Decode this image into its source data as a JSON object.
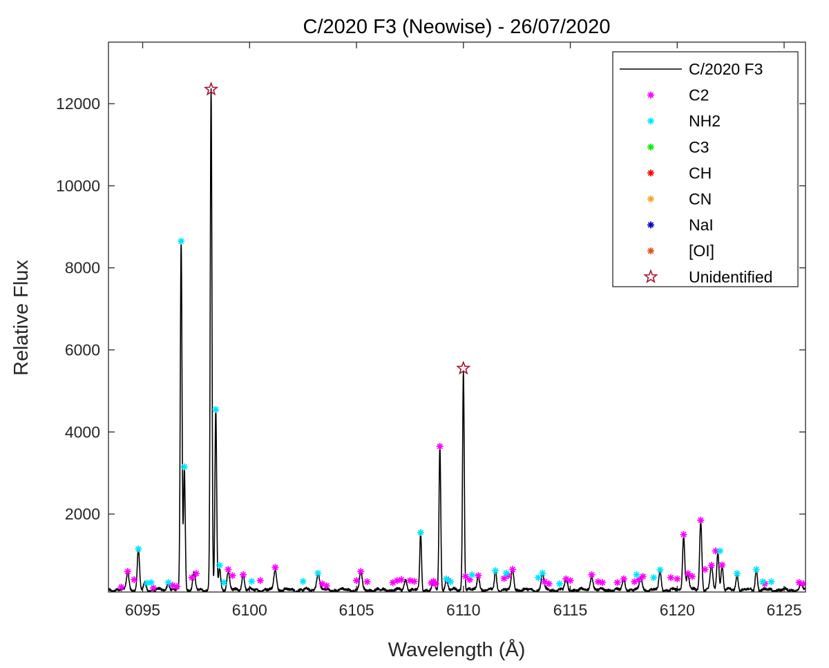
{
  "chart_data": {
    "type": "line",
    "title": "C/2020 F3 (Neowise) - 26/07/2020",
    "xlabel": "Wavelength (Å)",
    "ylabel": "Relative Flux",
    "xlim": [
      6093.4,
      6126.0
    ],
    "ylim": [
      100,
      13500
    ],
    "xticks": [
      6095,
      6100,
      6105,
      6110,
      6115,
      6120,
      6125
    ],
    "yticks": [
      2000,
      4000,
      6000,
      8000,
      10000,
      12000
    ],
    "grid": false,
    "legend_position": "top-right",
    "baseline": 150,
    "spectrum": {
      "name": "C/2020 F3",
      "color": "#000000",
      "peaks": [
        {
          "x": 6094.3,
          "y": 600,
          "w": 0.06
        },
        {
          "x": 6094.8,
          "y": 1150,
          "w": 0.05
        },
        {
          "x": 6095.1,
          "y": 320,
          "w": 0.06
        },
        {
          "x": 6096.2,
          "y": 330,
          "w": 0.06
        },
        {
          "x": 6096.8,
          "y": 8650,
          "w": 0.04
        },
        {
          "x": 6096.95,
          "y": 3150,
          "w": 0.04
        },
        {
          "x": 6097.4,
          "y": 550,
          "w": 0.06
        },
        {
          "x": 6098.2,
          "y": 12350,
          "w": 0.04
        },
        {
          "x": 6098.42,
          "y": 4550,
          "w": 0.04
        },
        {
          "x": 6098.6,
          "y": 700,
          "w": 0.05
        },
        {
          "x": 6099.0,
          "y": 600,
          "w": 0.06
        },
        {
          "x": 6099.7,
          "y": 520,
          "w": 0.06
        },
        {
          "x": 6101.2,
          "y": 700,
          "w": 0.06
        },
        {
          "x": 6103.2,
          "y": 560,
          "w": 0.07
        },
        {
          "x": 6105.2,
          "y": 600,
          "w": 0.06
        },
        {
          "x": 6107.3,
          "y": 400,
          "w": 0.06
        },
        {
          "x": 6108.0,
          "y": 1550,
          "w": 0.04
        },
        {
          "x": 6108.6,
          "y": 360,
          "w": 0.06
        },
        {
          "x": 6108.9,
          "y": 3650,
          "w": 0.04
        },
        {
          "x": 6109.2,
          "y": 420,
          "w": 0.06
        },
        {
          "x": 6110.0,
          "y": 5500,
          "w": 0.04
        },
        {
          "x": 6110.7,
          "y": 500,
          "w": 0.06
        },
        {
          "x": 6111.5,
          "y": 600,
          "w": 0.05
        },
        {
          "x": 6112.3,
          "y": 650,
          "w": 0.06
        },
        {
          "x": 6113.7,
          "y": 560,
          "w": 0.06
        },
        {
          "x": 6114.8,
          "y": 420,
          "w": 0.06
        },
        {
          "x": 6116.0,
          "y": 520,
          "w": 0.06
        },
        {
          "x": 6117.5,
          "y": 420,
          "w": 0.06
        },
        {
          "x": 6118.3,
          "y": 480,
          "w": 0.06
        },
        {
          "x": 6119.2,
          "y": 640,
          "w": 0.05
        },
        {
          "x": 6120.3,
          "y": 1500,
          "w": 0.05
        },
        {
          "x": 6120.5,
          "y": 550,
          "w": 0.06
        },
        {
          "x": 6121.1,
          "y": 1850,
          "w": 0.05
        },
        {
          "x": 6121.6,
          "y": 750,
          "w": 0.06
        },
        {
          "x": 6121.9,
          "y": 1100,
          "w": 0.05
        },
        {
          "x": 6122.1,
          "y": 760,
          "w": 0.05
        },
        {
          "x": 6122.8,
          "y": 550,
          "w": 0.05
        },
        {
          "x": 6123.7,
          "y": 650,
          "w": 0.05
        },
        {
          "x": 6125.8,
          "y": 300,
          "w": 0.06
        }
      ]
    },
    "legend_entries": [
      {
        "key": "spectrum",
        "label": "C/2020 F3",
        "marker": "line",
        "color": "#000000"
      },
      {
        "key": "C2",
        "label": "C2",
        "marker": "asterisk",
        "color": "#ff00ff"
      },
      {
        "key": "NH2",
        "label": "NH2",
        "marker": "asterisk",
        "color": "#00e5ff"
      },
      {
        "key": "C3",
        "label": "C3",
        "marker": "asterisk",
        "color": "#00ee00"
      },
      {
        "key": "CH",
        "label": "CH",
        "marker": "asterisk",
        "color": "#ff0000"
      },
      {
        "key": "CN",
        "label": "CN",
        "marker": "asterisk",
        "color": "#f5a623"
      },
      {
        "key": "NaI",
        "label": "NaI",
        "marker": "asterisk",
        "color": "#0000cc"
      },
      {
        "key": "OI",
        "label": "[OI]",
        "marker": "asterisk",
        "color": "#d95319"
      },
      {
        "key": "Unidentified",
        "label": "Unidentified",
        "marker": "star",
        "color": "#a2142f"
      }
    ],
    "series": [
      {
        "key": "C2",
        "name": "C2",
        "marker": "asterisk",
        "color": "#ff00ff",
        "points": [
          {
            "x": 6094.0,
            "y": 220
          },
          {
            "x": 6094.3,
            "y": 600
          },
          {
            "x": 6094.6,
            "y": 400
          },
          {
            "x": 6095.5,
            "y": 200
          },
          {
            "x": 6096.4,
            "y": 260
          },
          {
            "x": 6096.6,
            "y": 230
          },
          {
            "x": 6097.3,
            "y": 450
          },
          {
            "x": 6097.5,
            "y": 550
          },
          {
            "x": 6099.0,
            "y": 650
          },
          {
            "x": 6099.2,
            "y": 500
          },
          {
            "x": 6099.7,
            "y": 520
          },
          {
            "x": 6100.5,
            "y": 380
          },
          {
            "x": 6101.2,
            "y": 700
          },
          {
            "x": 6103.4,
            "y": 300
          },
          {
            "x": 6103.6,
            "y": 250
          },
          {
            "x": 6105.0,
            "y": 380
          },
          {
            "x": 6105.2,
            "y": 600
          },
          {
            "x": 6105.5,
            "y": 350
          },
          {
            "x": 6106.7,
            "y": 330
          },
          {
            "x": 6106.9,
            "y": 380
          },
          {
            "x": 6107.1,
            "y": 400
          },
          {
            "x": 6107.5,
            "y": 380
          },
          {
            "x": 6107.7,
            "y": 360
          },
          {
            "x": 6108.5,
            "y": 320
          },
          {
            "x": 6108.6,
            "y": 360
          },
          {
            "x": 6108.7,
            "y": 300
          },
          {
            "x": 6108.9,
            "y": 3650
          },
          {
            "x": 6109.3,
            "y": 380
          },
          {
            "x": 6110.1,
            "y": 480
          },
          {
            "x": 6110.3,
            "y": 400
          },
          {
            "x": 6110.7,
            "y": 500
          },
          {
            "x": 6111.9,
            "y": 430
          },
          {
            "x": 6112.1,
            "y": 500
          },
          {
            "x": 6112.3,
            "y": 650
          },
          {
            "x": 6113.8,
            "y": 350
          },
          {
            "x": 6114.0,
            "y": 300
          },
          {
            "x": 6114.8,
            "y": 420
          },
          {
            "x": 6115.0,
            "y": 380
          },
          {
            "x": 6116.0,
            "y": 520
          },
          {
            "x": 6116.3,
            "y": 350
          },
          {
            "x": 6116.5,
            "y": 330
          },
          {
            "x": 6117.2,
            "y": 330
          },
          {
            "x": 6117.5,
            "y": 420
          },
          {
            "x": 6118.0,
            "y": 350
          },
          {
            "x": 6118.2,
            "y": 400
          },
          {
            "x": 6118.4,
            "y": 480
          },
          {
            "x": 6119.7,
            "y": 450
          },
          {
            "x": 6120.0,
            "y": 420
          },
          {
            "x": 6120.3,
            "y": 1500
          },
          {
            "x": 6120.5,
            "y": 550
          },
          {
            "x": 6120.7,
            "y": 480
          },
          {
            "x": 6121.1,
            "y": 1850
          },
          {
            "x": 6121.3,
            "y": 650
          },
          {
            "x": 6121.6,
            "y": 750
          },
          {
            "x": 6121.8,
            "y": 1100
          },
          {
            "x": 6122.1,
            "y": 760
          },
          {
            "x": 6124.1,
            "y": 300
          },
          {
            "x": 6125.7,
            "y": 330
          },
          {
            "x": 6125.9,
            "y": 300
          }
        ]
      },
      {
        "key": "NH2",
        "name": "NH2",
        "marker": "asterisk",
        "color": "#00e5ff",
        "points": [
          {
            "x": 6094.8,
            "y": 1150
          },
          {
            "x": 6095.2,
            "y": 320
          },
          {
            "x": 6095.4,
            "y": 330
          },
          {
            "x": 6096.2,
            "y": 330
          },
          {
            "x": 6096.8,
            "y": 8650
          },
          {
            "x": 6096.95,
            "y": 3150
          },
          {
            "x": 6098.42,
            "y": 4550
          },
          {
            "x": 6098.6,
            "y": 750
          },
          {
            "x": 6098.8,
            "y": 330
          },
          {
            "x": 6100.1,
            "y": 360
          },
          {
            "x": 6102.5,
            "y": 360
          },
          {
            "x": 6103.2,
            "y": 560
          },
          {
            "x": 6108.0,
            "y": 1550
          },
          {
            "x": 6109.2,
            "y": 420
          },
          {
            "x": 6109.4,
            "y": 350
          },
          {
            "x": 6110.4,
            "y": 520
          },
          {
            "x": 6111.5,
            "y": 620
          },
          {
            "x": 6112.0,
            "y": 560
          },
          {
            "x": 6113.5,
            "y": 450
          },
          {
            "x": 6113.7,
            "y": 560
          },
          {
            "x": 6114.5,
            "y": 300
          },
          {
            "x": 6118.1,
            "y": 520
          },
          {
            "x": 6118.9,
            "y": 450
          },
          {
            "x": 6119.2,
            "y": 640
          },
          {
            "x": 6122.0,
            "y": 1100
          },
          {
            "x": 6122.8,
            "y": 550
          },
          {
            "x": 6123.7,
            "y": 650
          },
          {
            "x": 6124.0,
            "y": 350
          },
          {
            "x": 6124.4,
            "y": 350
          }
        ]
      },
      {
        "key": "Unidentified",
        "name": "Unidentified",
        "marker": "star",
        "color": "#a2142f",
        "points": [
          {
            "x": 6098.2,
            "y": 12350
          },
          {
            "x": 6110.0,
            "y": 5550
          }
        ]
      }
    ]
  }
}
